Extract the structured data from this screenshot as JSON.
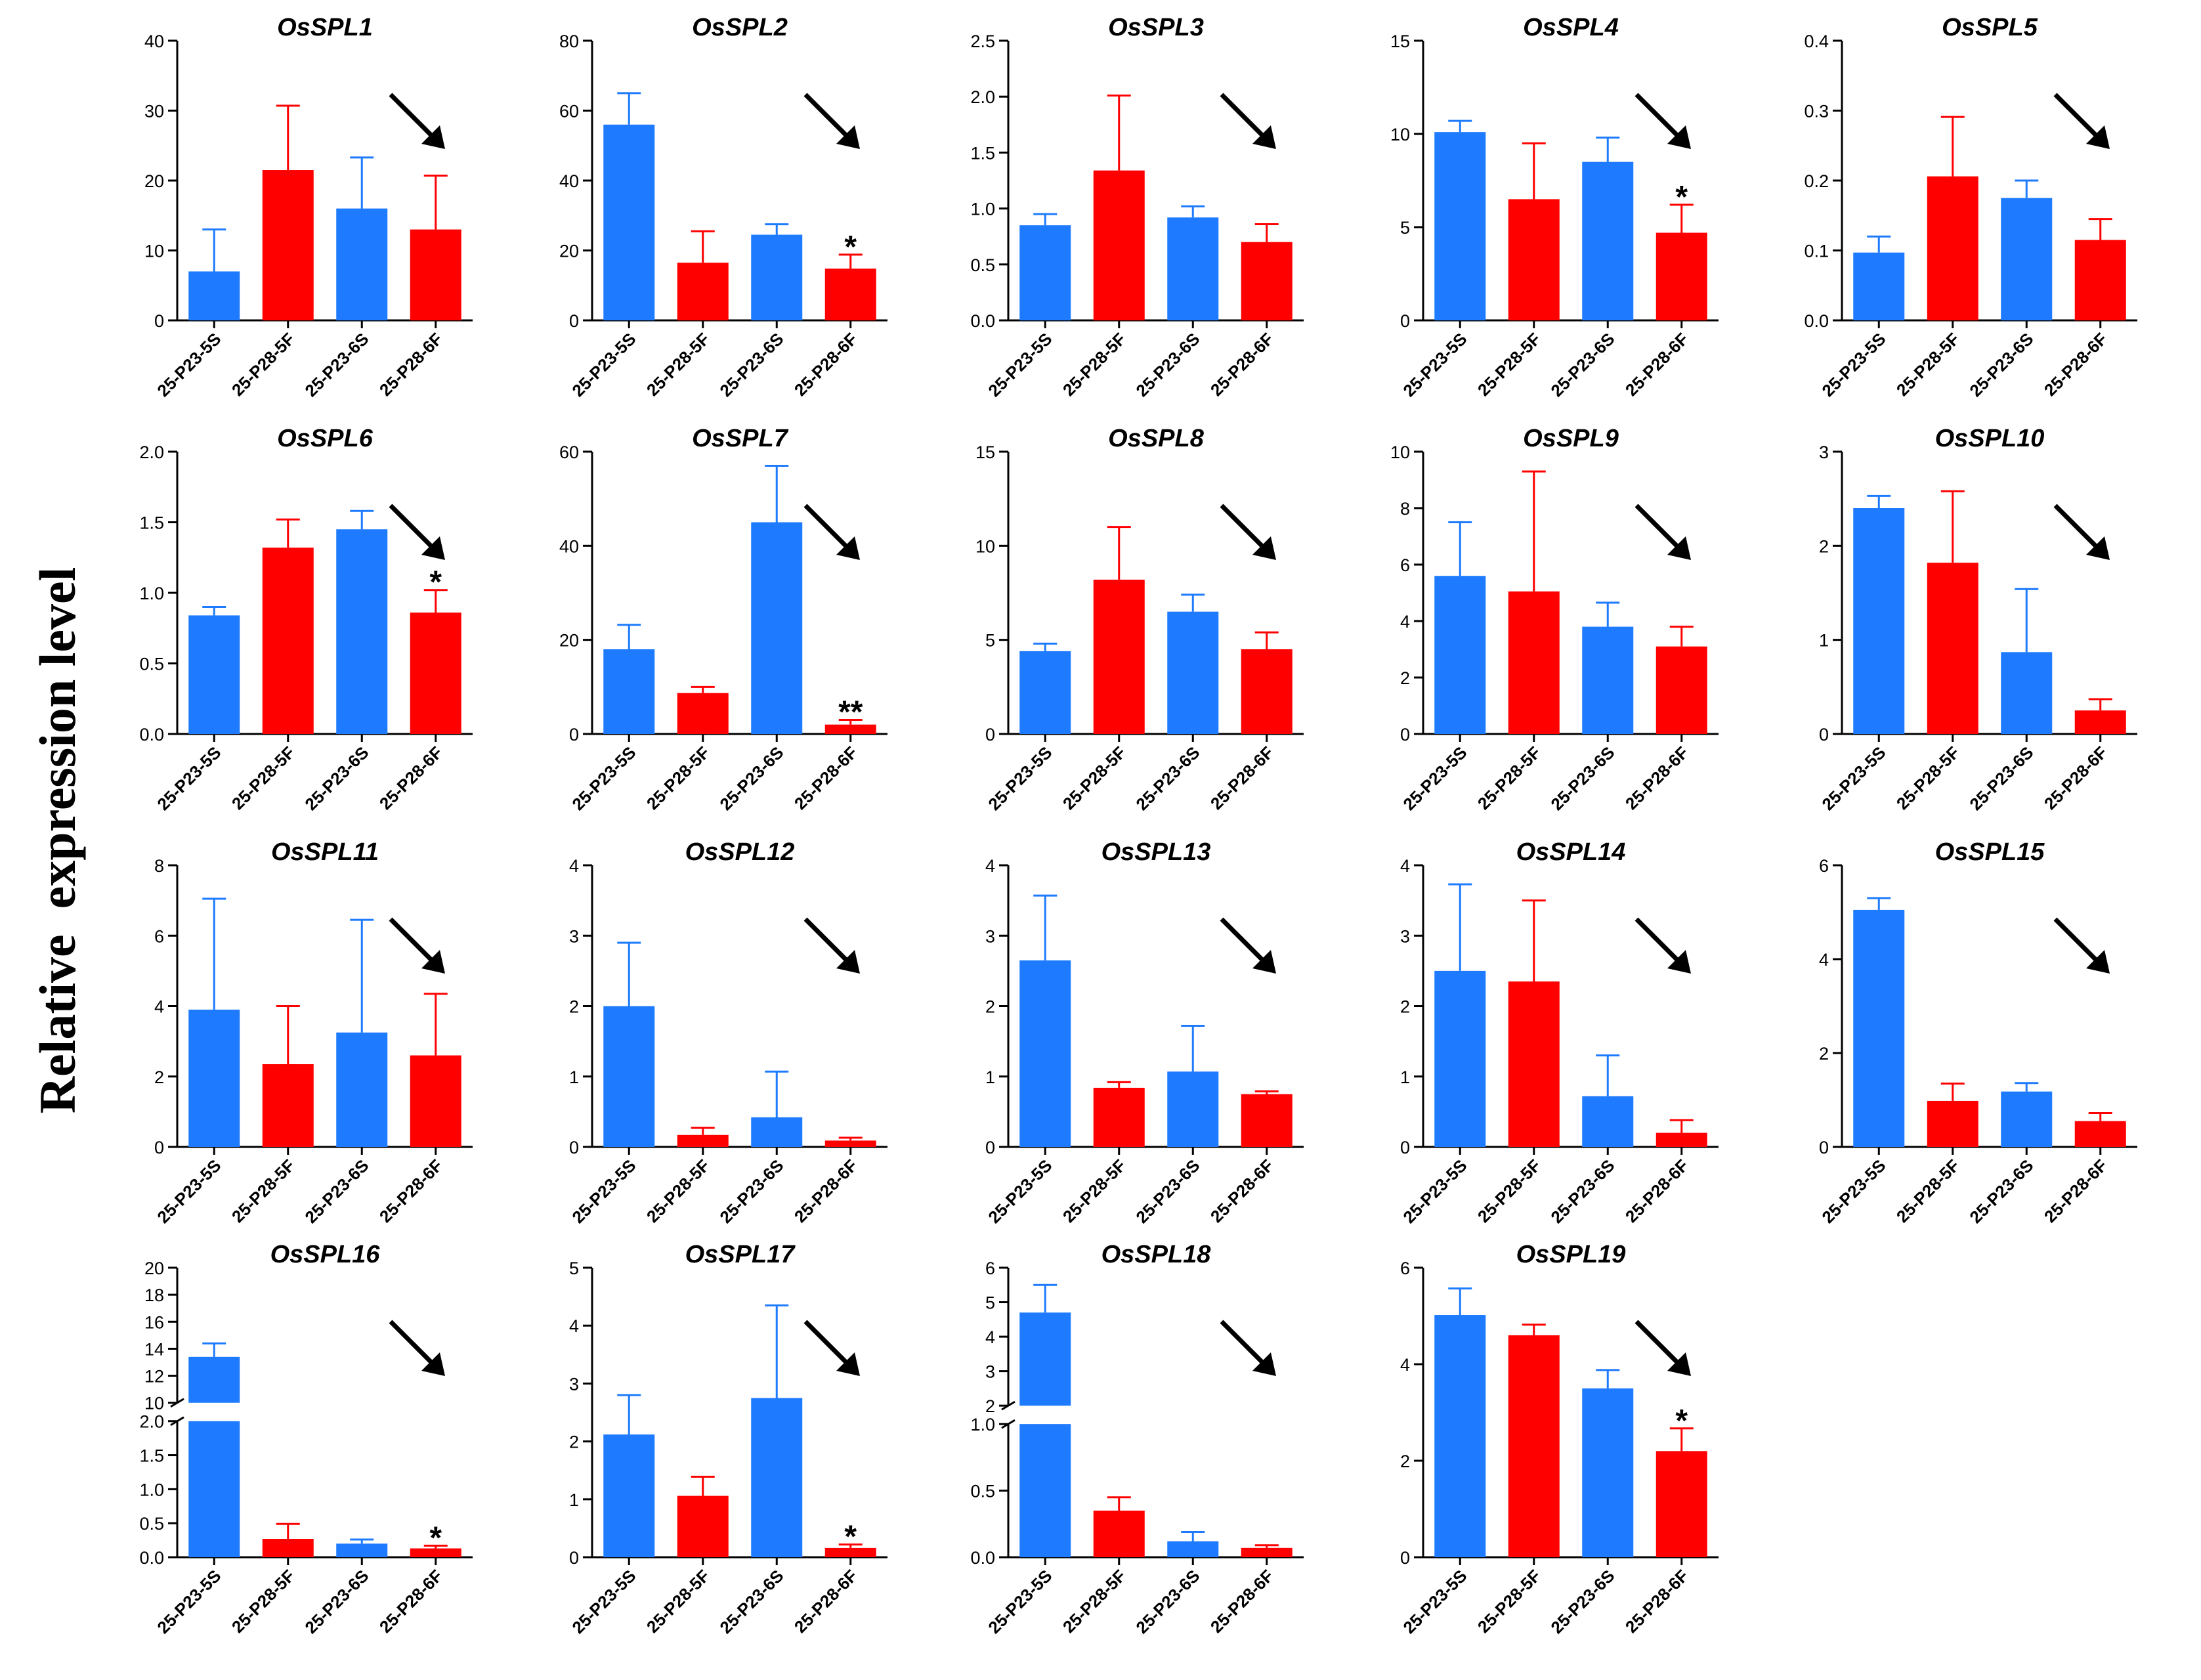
{
  "figure": {
    "ylabel": "Relative  expression level",
    "colors": {
      "blue": "#1E7BFF",
      "red": "#FF0000",
      "axis": "#000000"
    }
  },
  "chart_data": [
    {
      "type": "bar",
      "title": "OsSPL1",
      "categories": [
        "25-P23-5S",
        "25-P28-5F",
        "25-P23-6S",
        "25-P28-6F"
      ],
      "values": [
        7,
        21.5,
        16,
        13
      ],
      "errors": [
        6,
        9.2,
        7.3,
        7.7
      ],
      "ylim": [
        0,
        40
      ],
      "ticks": [
        0,
        10,
        20,
        30,
        40
      ],
      "ticklabels": [
        "0",
        "10",
        "20",
        "30",
        "40"
      ],
      "significance": [
        "",
        "",
        "",
        ""
      ],
      "trend_arrow": true
    },
    {
      "type": "bar",
      "title": "OsSPL2",
      "categories": [
        "25-P23-5S",
        "25-P28-5F",
        "25-P23-6S",
        "25-P28-6F"
      ],
      "values": [
        56,
        16.5,
        24.5,
        14.8
      ],
      "errors": [
        9,
        9,
        3,
        4
      ],
      "ylim": [
        0,
        80
      ],
      "ticks": [
        0,
        20,
        40,
        60,
        80
      ],
      "ticklabels": [
        "0",
        "20",
        "40",
        "60",
        "80"
      ],
      "significance": [
        "",
        "",
        "",
        "*"
      ],
      "trend_arrow": true
    },
    {
      "type": "bar",
      "title": "OsSPL3",
      "categories": [
        "25-P23-5S",
        "25-P28-5F",
        "25-P23-6S",
        "25-P28-6F"
      ],
      "values": [
        0.85,
        1.34,
        0.92,
        0.7
      ],
      "errors": [
        0.1,
        0.67,
        0.1,
        0.16
      ],
      "ylim": [
        0,
        2.5
      ],
      "ticks": [
        0,
        0.5,
        1,
        1.5,
        2,
        2.5
      ],
      "ticklabels": [
        "0.0",
        "0.5",
        "1.0",
        "1.5",
        "2.0",
        "2.5"
      ],
      "significance": [
        "",
        "",
        "",
        ""
      ],
      "trend_arrow": true
    },
    {
      "type": "bar",
      "title": "OsSPL4",
      "categories": [
        "25-P23-5S",
        "25-P28-5F",
        "25-P23-6S",
        "25-P28-6F"
      ],
      "values": [
        10.1,
        6.5,
        8.5,
        4.7
      ],
      "errors": [
        0.6,
        3,
        1.3,
        1.5
      ],
      "ylim": [
        0,
        15
      ],
      "ticks": [
        0,
        5,
        10,
        15
      ],
      "ticklabels": [
        "0",
        "5",
        "10",
        "15"
      ],
      "significance": [
        "",
        "",
        "",
        "*"
      ],
      "trend_arrow": true
    },
    {
      "type": "bar",
      "title": "OsSPL5",
      "categories": [
        "25-P23-5S",
        "25-P28-5F",
        "25-P23-6S",
        "25-P28-6F"
      ],
      "values": [
        0.097,
        0.206,
        0.175,
        0.115
      ],
      "errors": [
        0.023,
        0.085,
        0.025,
        0.03
      ],
      "ylim": [
        0,
        0.4
      ],
      "ticks": [
        0,
        0.1,
        0.2,
        0.3,
        0.4
      ],
      "ticklabels": [
        "0.0",
        "0.1",
        "0.2",
        "0.3",
        "0.4"
      ],
      "significance": [
        "",
        "",
        "",
        ""
      ],
      "trend_arrow": true
    },
    {
      "type": "bar",
      "title": "OsSPL6",
      "categories": [
        "25-P23-5S",
        "25-P28-5F",
        "25-P23-6S",
        "25-P28-6F"
      ],
      "values": [
        0.84,
        1.32,
        1.45,
        0.86
      ],
      "errors": [
        0.06,
        0.2,
        0.13,
        0.16
      ],
      "ylim": [
        0,
        2
      ],
      "ticks": [
        0,
        0.5,
        1,
        1.5,
        2
      ],
      "ticklabels": [
        "0.0",
        "0.5",
        "1.0",
        "1.5",
        "2.0"
      ],
      "significance": [
        "",
        "",
        "",
        "*"
      ],
      "trend_arrow": true
    },
    {
      "type": "bar",
      "title": "OsSPL7",
      "categories": [
        "25-P23-5S",
        "25-P28-5F",
        "25-P23-6S",
        "25-P28-6F"
      ],
      "values": [
        18,
        8.7,
        45,
        2
      ],
      "errors": [
        5.2,
        1.3,
        12,
        1
      ],
      "ylim": [
        0,
        60
      ],
      "ticks": [
        0,
        20,
        40,
        60
      ],
      "ticklabels": [
        "0",
        "20",
        "40",
        "60"
      ],
      "significance": [
        "",
        "",
        "",
        "**"
      ],
      "trend_arrow": true
    },
    {
      "type": "bar",
      "title": "OsSPL8",
      "categories": [
        "25-P23-5S",
        "25-P28-5F",
        "25-P23-6S",
        "25-P28-6F"
      ],
      "values": [
        4.4,
        8.2,
        6.5,
        4.5
      ],
      "errors": [
        0.4,
        2.8,
        0.9,
        0.9
      ],
      "ylim": [
        0,
        15
      ],
      "ticks": [
        0,
        5,
        10,
        15
      ],
      "ticklabels": [
        "0",
        "5",
        "10",
        "15"
      ],
      "significance": [
        "",
        "",
        "",
        ""
      ],
      "trend_arrow": true
    },
    {
      "type": "bar",
      "title": "OsSPL9",
      "categories": [
        "25-P23-5S",
        "25-P28-5F",
        "25-P23-6S",
        "25-P28-6F"
      ],
      "values": [
        5.6,
        5.05,
        3.8,
        3.1
      ],
      "errors": [
        1.9,
        4.25,
        0.85,
        0.7
      ],
      "ylim": [
        0,
        10
      ],
      "ticks": [
        0,
        2,
        4,
        6,
        8,
        10
      ],
      "ticklabels": [
        "0",
        "2",
        "4",
        "6",
        "8",
        "10"
      ],
      "significance": [
        "",
        "",
        "",
        ""
      ],
      "trend_arrow": true
    },
    {
      "type": "bar",
      "title": "OsSPL10",
      "categories": [
        "25-P23-5S",
        "25-P28-5F",
        "25-P23-6S",
        "25-P28-6F"
      ],
      "values": [
        2.4,
        1.82,
        0.87,
        0.25
      ],
      "errors": [
        0.13,
        0.76,
        0.67,
        0.12
      ],
      "ylim": [
        0,
        3
      ],
      "ticks": [
        0,
        1,
        2,
        3
      ],
      "ticklabels": [
        "0",
        "1",
        "2",
        "3"
      ],
      "significance": [
        "",
        "",
        "",
        ""
      ],
      "trend_arrow": true
    },
    {
      "type": "bar",
      "title": "OsSPL11",
      "categories": [
        "25-P23-5S",
        "25-P28-5F",
        "25-P23-6S",
        "25-P28-6F"
      ],
      "values": [
        3.9,
        2.35,
        3.25,
        2.6
      ],
      "errors": [
        3.15,
        1.65,
        3.2,
        1.75
      ],
      "ylim": [
        0,
        8
      ],
      "ticks": [
        0,
        2,
        4,
        6,
        8
      ],
      "ticklabels": [
        "0",
        "2",
        "4",
        "6",
        "8"
      ],
      "significance": [
        "",
        "",
        "",
        ""
      ],
      "trend_arrow": true
    },
    {
      "type": "bar",
      "title": "OsSPL12",
      "categories": [
        "25-P23-5S",
        "25-P28-5F",
        "25-P23-6S",
        "25-P28-6F"
      ],
      "values": [
        2,
        0.17,
        0.42,
        0.09
      ],
      "errors": [
        0.9,
        0.1,
        0.65,
        0.04
      ],
      "ylim": [
        0,
        4
      ],
      "ticks": [
        0,
        1,
        2,
        3,
        4
      ],
      "ticklabels": [
        "0",
        "1",
        "2",
        "3",
        "4"
      ],
      "significance": [
        "",
        "",
        "",
        ""
      ],
      "trend_arrow": true
    },
    {
      "type": "bar",
      "title": "OsSPL13",
      "categories": [
        "25-P23-5S",
        "25-P28-5F",
        "25-P23-6S",
        "25-P28-6F"
      ],
      "values": [
        2.65,
        0.84,
        1.07,
        0.75
      ],
      "errors": [
        0.92,
        0.08,
        0.65,
        0.04
      ],
      "ylim": [
        0,
        4
      ],
      "ticks": [
        0,
        1,
        2,
        3,
        4
      ],
      "ticklabels": [
        "0",
        "1",
        "2",
        "3",
        "4"
      ],
      "significance": [
        "",
        "",
        "",
        ""
      ],
      "trend_arrow": true
    },
    {
      "type": "bar",
      "title": "OsSPL14",
      "categories": [
        "25-P23-5S",
        "25-P28-5F",
        "25-P23-6S",
        "25-P28-6F"
      ],
      "values": [
        2.5,
        2.35,
        0.72,
        0.2
      ],
      "errors": [
        1.23,
        1.15,
        0.58,
        0.18
      ],
      "ylim": [
        0,
        4
      ],
      "ticks": [
        0,
        1,
        2,
        3,
        4
      ],
      "ticklabels": [
        "0",
        "1",
        "2",
        "3",
        "4"
      ],
      "significance": [
        "",
        "",
        "",
        ""
      ],
      "trend_arrow": true
    },
    {
      "type": "bar",
      "title": "OsSPL15",
      "categories": [
        "25-P23-5S",
        "25-P28-5F",
        "25-P23-6S",
        "25-P28-6F"
      ],
      "values": [
        5.05,
        0.98,
        1.18,
        0.55
      ],
      "errors": [
        0.25,
        0.37,
        0.18,
        0.17
      ],
      "ylim": [
        0,
        6
      ],
      "ticks": [
        0,
        2,
        4,
        6
      ],
      "ticklabels": [
        "0",
        "2",
        "4",
        "6"
      ],
      "significance": [
        "",
        "",
        "",
        ""
      ],
      "trend_arrow": true
    },
    {
      "type": "bar",
      "title": "OsSPL16",
      "categories": [
        "25-P23-5S",
        "25-P28-5F",
        "25-P23-6S",
        "25-P28-6F"
      ],
      "values": [
        13.4,
        0.27,
        0.2,
        0.13
      ],
      "errors": [
        1,
        0.22,
        0.06,
        0.04
      ],
      "ylim": [
        0,
        20
      ],
      "broken_axis": {
        "lower": [
          0,
          2
        ],
        "upper": [
          10,
          20
        ]
      },
      "ticks": [
        0,
        0.5,
        1,
        1.5,
        2,
        10,
        12,
        14,
        16,
        18,
        20
      ],
      "ticklabels": [
        "0.0",
        "0.5",
        "1.0",
        "1.5",
        "2.0",
        "10",
        "12",
        "14",
        "16",
        "18",
        "20"
      ],
      "significance": [
        "",
        "",
        "",
        "*"
      ],
      "trend_arrow": true
    },
    {
      "type": "bar",
      "title": "OsSPL17",
      "categories": [
        "25-P23-5S",
        "25-P28-5F",
        "25-P23-6S",
        "25-P28-6F"
      ],
      "values": [
        2.12,
        1.06,
        2.75,
        0.16
      ],
      "errors": [
        0.68,
        0.33,
        1.6,
        0.06
      ],
      "ylim": [
        0,
        5
      ],
      "ticks": [
        0,
        1,
        2,
        3,
        4,
        5
      ],
      "ticklabels": [
        "0",
        "1",
        "2",
        "3",
        "4",
        "5"
      ],
      "significance": [
        "",
        "",
        "",
        "*"
      ],
      "trend_arrow": true
    },
    {
      "type": "bar",
      "title": "OsSPL18",
      "categories": [
        "25-P23-5S",
        "25-P28-5F",
        "25-P23-6S",
        "25-P28-6F"
      ],
      "values": [
        4.7,
        0.35,
        0.12,
        0.07
      ],
      "errors": [
        0.8,
        0.1,
        0.07,
        0.02
      ],
      "ylim": [
        0,
        6
      ],
      "broken_axis": {
        "lower": [
          0,
          1
        ],
        "upper": [
          2,
          6
        ]
      },
      "ticks": [
        0,
        0.5,
        1,
        2,
        3,
        4,
        5,
        6
      ],
      "ticklabels": [
        "0.0",
        "0.5",
        "1.0",
        "2",
        "3",
        "4",
        "5",
        "6"
      ],
      "significance": [
        "",
        "",
        "",
        ""
      ],
      "trend_arrow": true
    },
    {
      "type": "bar",
      "title": "OsSPL19",
      "categories": [
        "25-P23-5S",
        "25-P28-5F",
        "25-P23-6S",
        "25-P28-6F"
      ],
      "values": [
        5.02,
        4.6,
        3.5,
        2.2
      ],
      "errors": [
        0.55,
        0.22,
        0.38,
        0.47
      ],
      "ylim": [
        0,
        6
      ],
      "ticks": [
        0,
        2,
        4,
        6
      ],
      "ticklabels": [
        "0",
        "2",
        "4",
        "6"
      ],
      "significance": [
        "",
        "",
        "",
        "*"
      ],
      "trend_arrow": true
    }
  ]
}
